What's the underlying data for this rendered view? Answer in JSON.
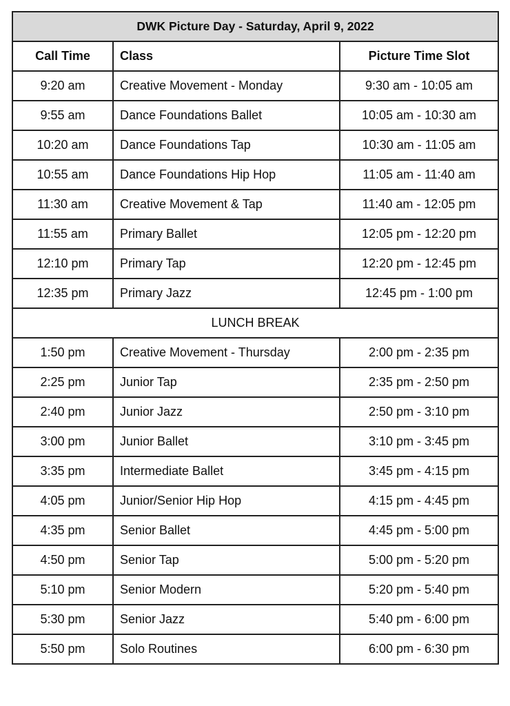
{
  "title": "DWK Picture Day - Saturday, April 9, 2022",
  "headers": {
    "call_time": "Call Time",
    "class": "Class",
    "slot": "Picture Time Slot"
  },
  "morning": [
    [
      "9:20 am",
      "Creative Movement - Monday",
      "9:30 am - 10:05 am"
    ],
    [
      "9:55 am",
      "Dance Foundations Ballet",
      "10:05 am - 10:30 am"
    ],
    [
      "10:20 am",
      "Dance Foundations Tap",
      "10:30 am - 11:05 am"
    ],
    [
      "10:55 am",
      "Dance Foundations Hip Hop",
      "11:05 am - 11:40 am"
    ],
    [
      "11:30 am",
      "Creative Movement & Tap",
      "11:40 am - 12:05 pm"
    ],
    [
      "11:55 am",
      "Primary Ballet",
      "12:05 pm - 12:20 pm"
    ],
    [
      "12:10 pm",
      "Primary Tap",
      "12:20 pm - 12:45 pm"
    ],
    [
      "12:35 pm",
      "Primary Jazz",
      "12:45 pm - 1:00 pm"
    ]
  ],
  "break_label": "LUNCH BREAK",
  "afternoon": [
    [
      "1:50 pm",
      "Creative Movement - Thursday",
      "2:00 pm - 2:35 pm"
    ],
    [
      "2:25 pm",
      "Junior Tap",
      "2:35 pm - 2:50 pm"
    ],
    [
      "2:40 pm",
      "Junior Jazz",
      "2:50 pm - 3:10 pm"
    ],
    [
      "3:00 pm",
      "Junior Ballet",
      "3:10 pm - 3:45 pm"
    ],
    [
      "3:35 pm",
      "Intermediate Ballet",
      "3:45 pm - 4:15 pm"
    ],
    [
      "4:05 pm",
      "Junior/Senior Hip Hop",
      "4:15 pm - 4:45 pm"
    ],
    [
      "4:35 pm",
      "Senior Ballet",
      "4:45 pm - 5:00 pm"
    ],
    [
      "4:50 pm",
      "Senior Tap",
      "5:00 pm - 5:20 pm"
    ],
    [
      "5:10 pm",
      "Senior Modern",
      "5:20 pm - 5:40 pm"
    ],
    [
      "5:30 pm",
      "Senior Jazz",
      "5:40 pm - 6:00 pm"
    ],
    [
      "5:50 pm",
      "Solo Routines",
      "6:00 pm - 6:30 pm"
    ]
  ]
}
